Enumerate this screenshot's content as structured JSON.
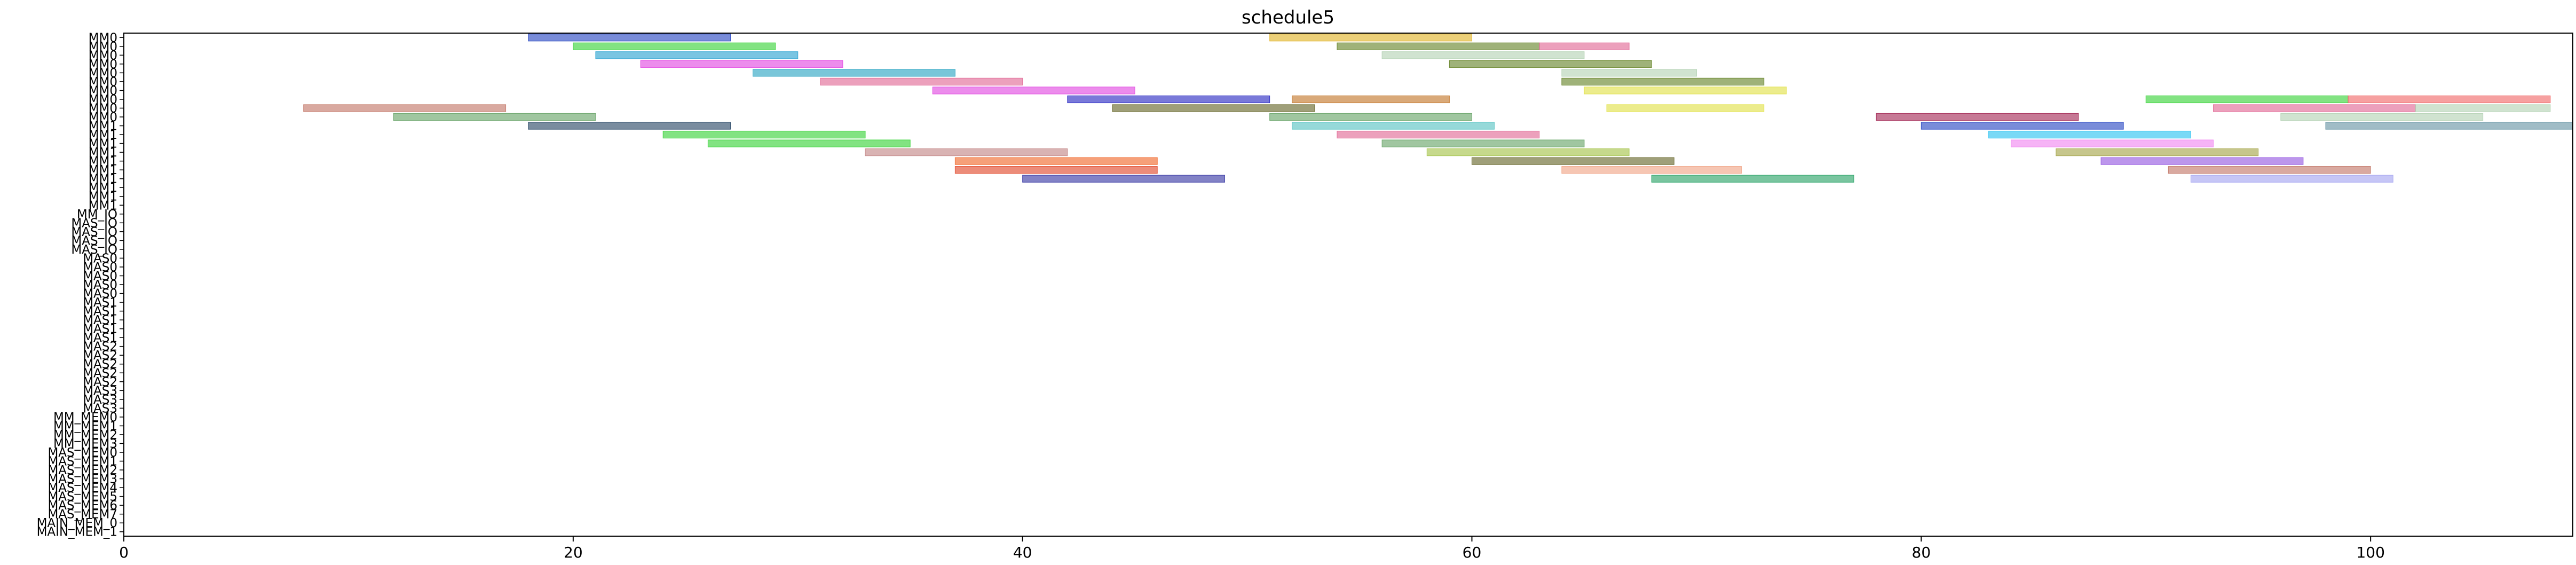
{
  "chart_data": {
    "type": "gantt",
    "title": "schedule5",
    "xlabel": "",
    "ylabel": "",
    "xlim": [
      0,
      109
    ],
    "x_ticks": [
      0,
      20,
      40,
      60,
      80,
      100
    ],
    "x_tick_labels": [
      "0",
      "20",
      "40",
      "60",
      "80",
      "100"
    ],
    "grid": false,
    "legend": "none",
    "bar_alpha": 0.6,
    "palette": [
      "#1f3fbf",
      "#2fd12f",
      "#1f9fcf",
      "#e040e0",
      "#20a0c0",
      "#e06090",
      "#a0a0a0",
      "#1f1fbf",
      "#2f2fa0",
      "#5f7f1f",
      "#b0d0b0",
      "#e0b020",
      "#909090",
      "#60a060",
      "#f06060",
      "#9050e0",
      "#50c0c0",
      "#e0e040",
      "#c07020",
      "#3f3f3f"
    ],
    "rows": [
      "MM0",
      "MM0",
      "MM0",
      "MM0",
      "MM0",
      "MM0",
      "MM0",
      "MM0",
      "MM0",
      "MM0",
      "MM1",
      "MM1",
      "MM1",
      "MM1",
      "MM1",
      "MM1",
      "MM1",
      "MM1",
      "MM1",
      "MM1",
      "MM_IO",
      "MAS_IO",
      "MAS_IO",
      "MAS_IO",
      "MAS_IO",
      "MAS0",
      "MAS0",
      "MAS0",
      "MAS0",
      "MAS0",
      "MAS1",
      "MAS1",
      "MAS1",
      "MAS1",
      "MAS1",
      "MAS2",
      "MAS2",
      "MAS2",
      "MAS2",
      "MAS2",
      "MAS3",
      "MAS3",
      "MAS3",
      "MM_MEM0",
      "MM_MEM1",
      "MM_MEM2",
      "MM_MEM3",
      "MAS_MEM0",
      "MAS_MEM1",
      "MAS_MEM2",
      "MAS_MEM3",
      "MAS_MEM4",
      "MAS_MEM5",
      "MAS_MEM6",
      "MAS_MEM7",
      "MAIN_MEM_0",
      "MAIN_MEM_1"
    ],
    "series": [
      {
        "row": 0,
        "start": 18,
        "end": 27,
        "color": "#1f3fbf"
      },
      {
        "row": 0,
        "start": 51,
        "end": 60,
        "color": "#e0b020"
      },
      {
        "row": 1,
        "start": 20,
        "end": 29,
        "color": "#2fd12f"
      },
      {
        "row": 1,
        "start": 54,
        "end": 63,
        "color": "#5f7f1f"
      },
      {
        "row": 1,
        "start": 63,
        "end": 67,
        "color": "#e06090"
      },
      {
        "row": 2,
        "start": 21,
        "end": 30,
        "color": "#1f9fcf"
      },
      {
        "row": 2,
        "start": 56,
        "end": 65,
        "color": "#b0d0b0"
      },
      {
        "row": 3,
        "start": 23,
        "end": 32,
        "color": "#e040e0"
      },
      {
        "row": 3,
        "start": 59,
        "end": 68,
        "color": "#5f7f1f"
      },
      {
        "row": 4,
        "start": 28,
        "end": 37,
        "color": "#20a0c0"
      },
      {
        "row": 4,
        "start": 64,
        "end": 70,
        "color": "#b0d0b0"
      },
      {
        "row": 5,
        "start": 31,
        "end": 40,
        "color": "#e06090"
      },
      {
        "row": 5,
        "start": 64,
        "end": 73,
        "color": "#5f7f1f"
      },
      {
        "row": 6,
        "start": 36,
        "end": 45,
        "color": "#e040e0"
      },
      {
        "row": 6,
        "start": 65,
        "end": 74,
        "color": "#e0e040"
      },
      {
        "row": 7,
        "start": 42,
        "end": 51,
        "color": "#1f1fbf"
      },
      {
        "row": 7,
        "start": 52,
        "end": 59,
        "color": "#c07020"
      },
      {
        "row": 7,
        "start": 90,
        "end": 99,
        "color": "#2fd12f"
      },
      {
        "row": 7,
        "start": 99,
        "end": 108,
        "color": "#f06060"
      },
      {
        "row": 8,
        "start": 8,
        "end": 17,
        "color": "#c07060"
      },
      {
        "row": 8,
        "start": 44,
        "end": 53,
        "color": "#5f5f1f"
      },
      {
        "row": 8,
        "start": 66,
        "end": 73,
        "color": "#e0e040"
      },
      {
        "row": 8,
        "start": 93,
        "end": 102,
        "color": "#e06090"
      },
      {
        "row": 8,
        "start": 102,
        "end": 108,
        "color": "#b0d0b0"
      },
      {
        "row": 9,
        "start": 12,
        "end": 21,
        "color": "#60a060"
      },
      {
        "row": 9,
        "start": 51,
        "end": 60,
        "color": "#60a060"
      },
      {
        "row": 9,
        "start": 78,
        "end": 87,
        "color": "#a0204f"
      },
      {
        "row": 9,
        "start": 96,
        "end": 105,
        "color": "#b0d0b0"
      },
      {
        "row": 10,
        "start": 18,
        "end": 27,
        "color": "#1f3f5f"
      },
      {
        "row": 10,
        "start": 52,
        "end": 61,
        "color": "#50c0c0"
      },
      {
        "row": 10,
        "start": 80,
        "end": 89,
        "color": "#1f3fbf"
      },
      {
        "row": 10,
        "start": 98,
        "end": 109,
        "color": "#6090a0"
      },
      {
        "row": 11,
        "start": 24,
        "end": 33,
        "color": "#2fd12f"
      },
      {
        "row": 11,
        "start": 54,
        "end": 63,
        "color": "#e06090"
      },
      {
        "row": 11,
        "start": 83,
        "end": 92,
        "color": "#20c0f0"
      },
      {
        "row": 12,
        "start": 26,
        "end": 35,
        "color": "#2fd12f"
      },
      {
        "row": 12,
        "start": 56,
        "end": 65,
        "color": "#60a060"
      },
      {
        "row": 12,
        "start": 84,
        "end": 93,
        "color": "#f080f0"
      },
      {
        "row": 13,
        "start": 33,
        "end": 42,
        "color": "#c08080"
      },
      {
        "row": 13,
        "start": 58,
        "end": 67,
        "color": "#a0c040"
      },
      {
        "row": 13,
        "start": 86,
        "end": 95,
        "color": "#a0a040"
      },
      {
        "row": 14,
        "start": 37,
        "end": 46,
        "color": "#f06020"
      },
      {
        "row": 14,
        "start": 60,
        "end": 69,
        "color": "#5f5f1f"
      },
      {
        "row": 14,
        "start": 88,
        "end": 97,
        "color": "#9050e0"
      },
      {
        "row": 15,
        "start": 37,
        "end": 46,
        "color": "#e04020"
      },
      {
        "row": 15,
        "start": 64,
        "end": 72,
        "color": "#f0a080"
      },
      {
        "row": 15,
        "start": 91,
        "end": 100,
        "color": "#c07060"
      },
      {
        "row": 16,
        "start": 40,
        "end": 49,
        "color": "#2f2fa0"
      },
      {
        "row": 16,
        "start": 68,
        "end": 77,
        "color": "#1f9f5f"
      },
      {
        "row": 16,
        "start": 92,
        "end": 101,
        "color": "#a0a0f0"
      }
    ]
  }
}
